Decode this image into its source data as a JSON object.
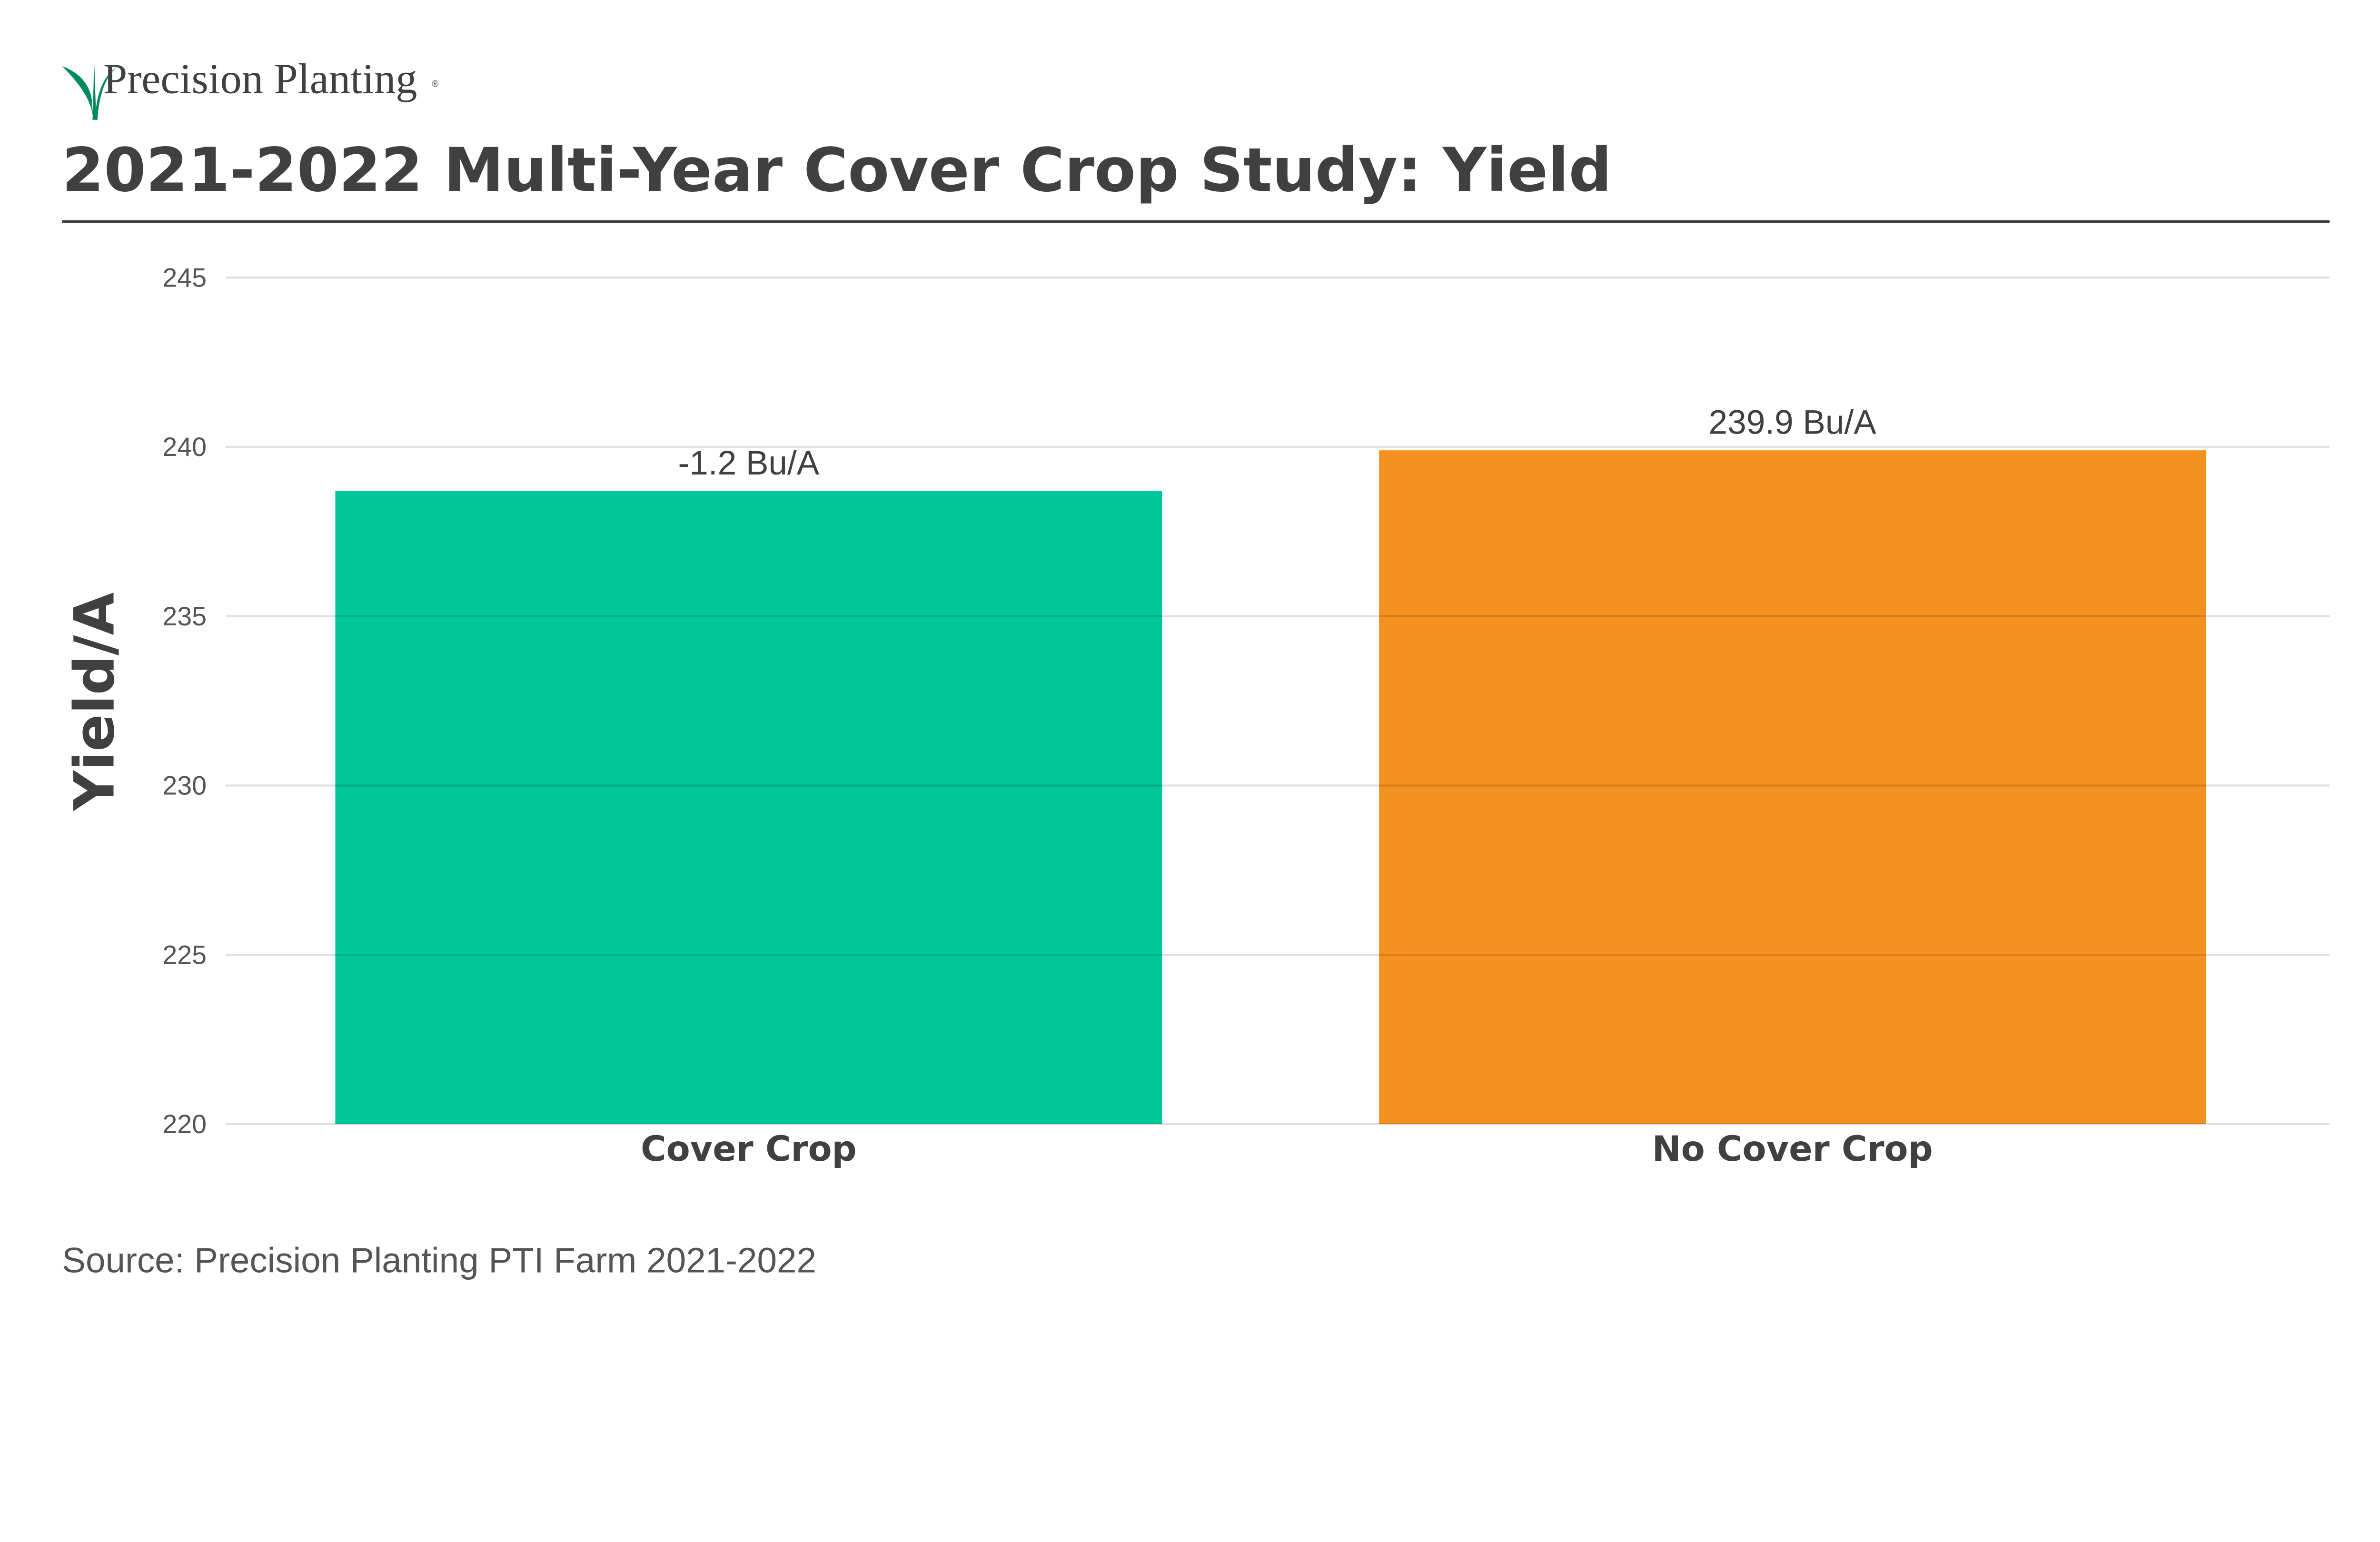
{
  "brand": {
    "name": "Precision Planting",
    "mark": "®",
    "leaf_color": "#008C5A"
  },
  "title": "2021-2022 Multi-Year Cover Crop Study: Yield",
  "source": "Source: Precision Planting PTI Farm 2021-2022",
  "chart_data": {
    "type": "bar",
    "title": "2021-2022 Multi-Year Cover Crop Study: Yield",
    "xlabel": "",
    "ylabel": "Yield/A",
    "categories": [
      "Cover Crop",
      "No Cover Crop"
    ],
    "values": [
      238.7,
      239.9
    ],
    "data_labels": [
      "-1.2 Bu/A",
      "239.9 Bu/A"
    ],
    "colors": [
      "#00C79A",
      "#F5911E"
    ],
    "ylim": [
      220,
      245
    ],
    "yticks": [
      220,
      225,
      230,
      235,
      240,
      245
    ],
    "grid": true,
    "legend": "none"
  }
}
